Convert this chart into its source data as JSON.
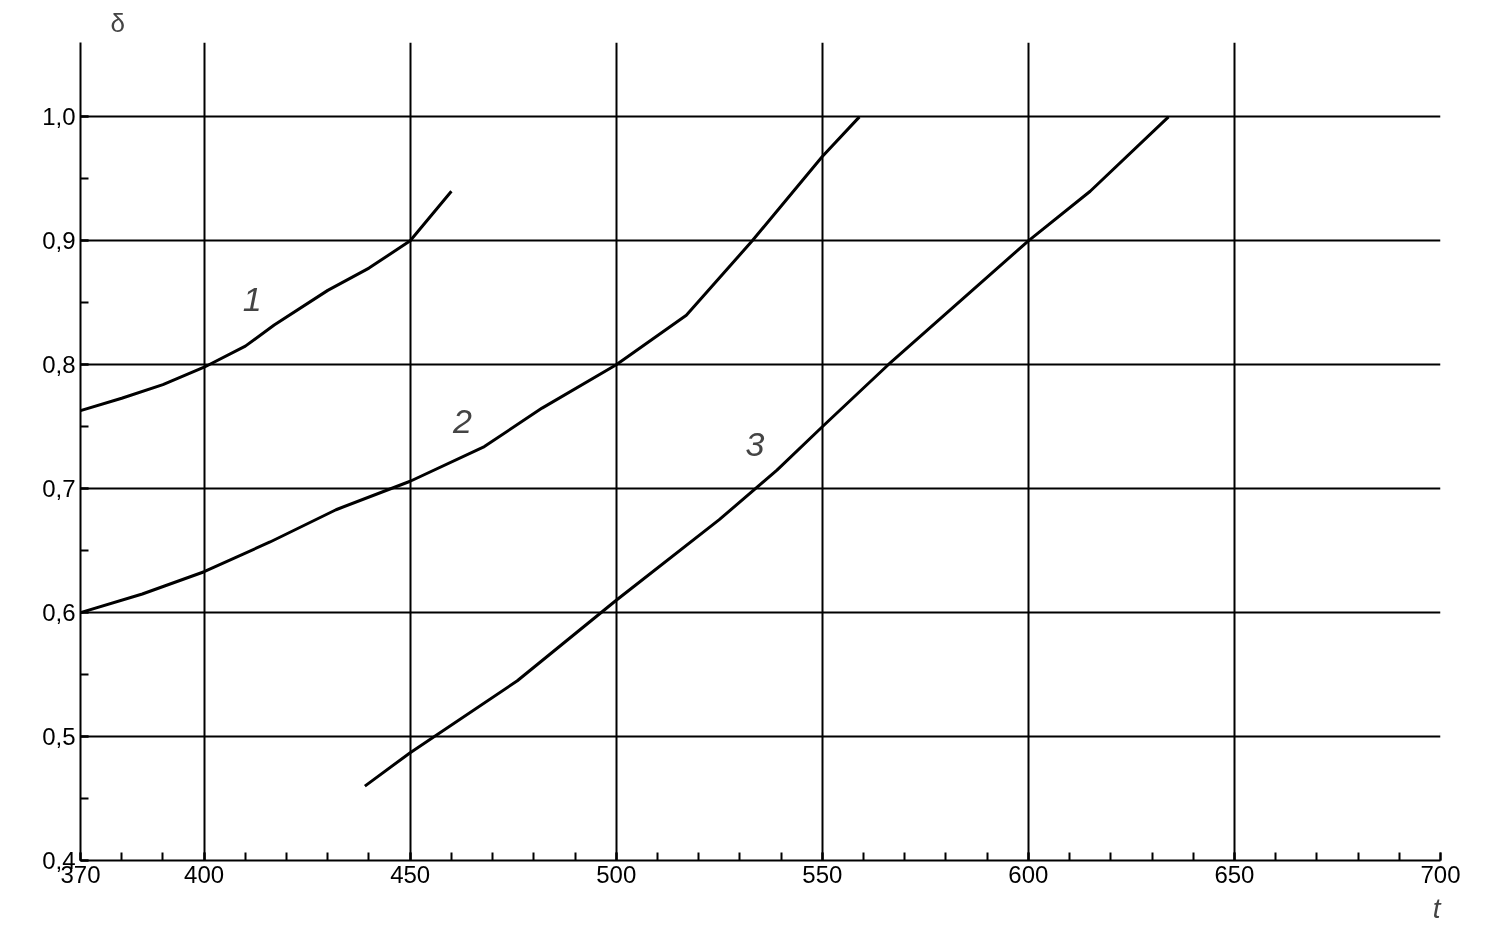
{
  "chart_data": {
    "type": "line",
    "xlabel": "t",
    "ylabel": "δ",
    "series": [
      {
        "color": "#000000",
        "x": [
          370,
          380,
          390,
          400,
          410,
          417,
          430,
          440,
          450,
          460
        ],
        "values": [
          0.763,
          0.773,
          0.784,
          0.798,
          0.815,
          0.832,
          0.86,
          0.878,
          0.9,
          0.94
        ]
      },
      {
        "color": "#000000",
        "x": [
          370,
          385,
          400,
          416,
          432,
          450,
          468,
          482,
          500,
          517,
          533,
          550,
          559
        ],
        "values": [
          0.6,
          0.615,
          0.633,
          0.657,
          0.683,
          0.706,
          0.734,
          0.765,
          0.8,
          0.84,
          0.9,
          0.968,
          1.0
        ]
      },
      {
        "color": "#000000",
        "x": [
          439,
          450,
          476,
          500,
          525,
          539,
          550,
          566,
          600,
          615,
          634
        ],
        "values": [
          0.46,
          0.487,
          0.545,
          0.61,
          0.675,
          0.715,
          0.75,
          0.8,
          0.9,
          0.94,
          1.0
        ]
      }
    ],
    "annotations": [
      "1",
      "2",
      "3"
    ],
    "xlim": [
      370,
      700
    ],
    "ylim": [
      0.4,
      1.06
    ],
    "xticks": [
      370,
      400,
      450,
      500,
      550,
      600,
      650,
      700
    ],
    "yticks": [
      {
        "value": 0.4,
        "label": "0,4"
      },
      {
        "value": 0.5,
        "label": "0,5"
      },
      {
        "value": 0.6,
        "label": "0,6"
      },
      {
        "value": 0.7,
        "label": "0,7"
      },
      {
        "value": 0.8,
        "label": "0,8"
      },
      {
        "value": 0.9,
        "label": "0,9"
      },
      {
        "value": 1.0,
        "label": "1,0"
      }
    ],
    "grid": true,
    "marker": "none",
    "line_style": "solid"
  }
}
